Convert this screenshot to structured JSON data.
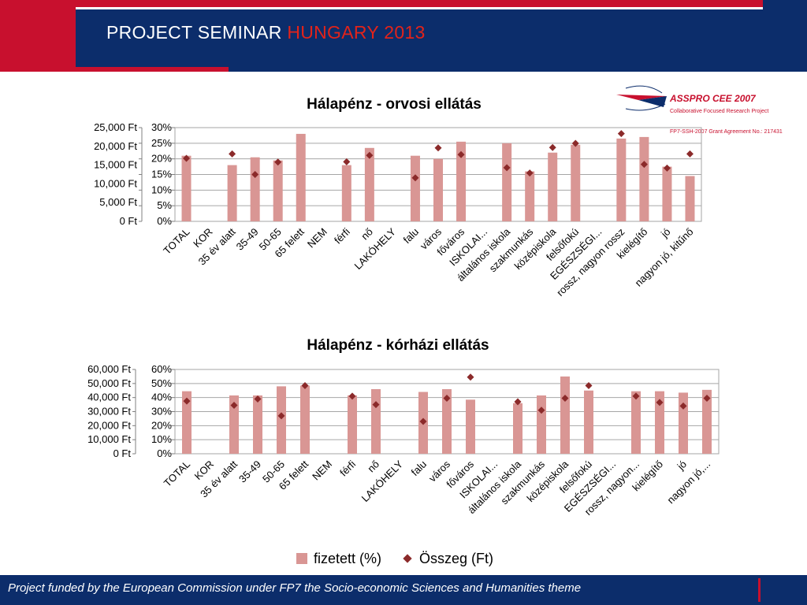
{
  "header": {
    "title_main": "PROJECT SEMINAR",
    "title_highlight": "HUNGARY 2013"
  },
  "logo": {
    "name": "ASSPRO CEE 2007",
    "subtitle": "Collaborative Focused Research Project",
    "grant": "FP7-SSH-2007 Grant Agreement No.: 217431"
  },
  "colors": {
    "navy": "#0c2d6b",
    "red": "#c8102e",
    "bar": "#d99694",
    "marker": "#8b2a2a"
  },
  "legend": {
    "bar_label": "fizetett (%)",
    "marker_label": "Összeg (Ft)"
  },
  "footer": {
    "text": "Project funded by the European Commission under FP7 the Socio-economic Sciences and Humanities theme"
  },
  "chart_data": [
    {
      "type": "bar",
      "title": "Hálapénz - orvosi ellátás",
      "categories": [
        "TOTAL",
        "KOR",
        "35 év alatt",
        "35-49",
        "50-65",
        "65 felett",
        "NEM",
        "férfi",
        "nő",
        "LAKÓHELY",
        "falu",
        "város",
        "főváros",
        "ISKOLAI...",
        "általános iskola",
        "szakmunkás",
        "középiskola",
        "felsőfokú",
        "EGÉSZSÉGI...",
        "rossz, nagyon rossz",
        "kielégítő",
        "jó",
        "nagyon jó, kitűnő"
      ],
      "series": [
        {
          "name": "fizetett (%)",
          "axis": "right",
          "values": [
            21,
            null,
            18,
            20.5,
            19.5,
            28,
            null,
            18,
            23.5,
            null,
            21,
            20,
            25.5,
            null,
            25,
            16,
            22,
            24.5,
            null,
            26.5,
            27,
            17.5,
            14.5
          ]
        },
        {
          "name": "Összeg (Ft)",
          "axis": "left",
          "values": [
            16800,
            null,
            18000,
            12500,
            15800,
            null,
            null,
            15900,
            17600,
            null,
            11600,
            19600,
            17800,
            null,
            14300,
            12900,
            19700,
            20800,
            null,
            23400,
            15200,
            14200,
            18000
          ]
        }
      ],
      "left_axis": {
        "ylim": [
          0,
          25000
        ],
        "ticks": [
          "0 Ft",
          "5,000 Ft",
          "10,000 Ft",
          "15,000 Ft",
          "20,000 Ft",
          "25,000 Ft"
        ]
      },
      "right_axis": {
        "ylim": [
          0,
          30
        ],
        "ticks": [
          "0%",
          "5%",
          "10%",
          "15%",
          "20%",
          "25%",
          "30%"
        ]
      },
      "grid": true
    },
    {
      "type": "bar",
      "title": "Hálapénz - kórházi ellátás",
      "categories": [
        "TOTAL",
        "KOR",
        "35 év alatt",
        "35-49",
        "50-65",
        "65 felett",
        "NEM",
        "férfi",
        "nő",
        "LAKÓHELY",
        "falu",
        "város",
        "főváros",
        "ISKOLAI...",
        "általános iskola",
        "szakmunkás",
        "középiskola",
        "felsőfokú",
        "EGÉSZSÉGI...",
        "rossz, nagyon...",
        "kielégítő",
        "jó",
        "nagyon jó,..."
      ],
      "series": [
        {
          "name": "fizetett (%)",
          "axis": "right",
          "values": [
            44.5,
            null,
            41.5,
            41.5,
            48,
            48.5,
            null,
            41.5,
            46,
            null,
            44,
            46,
            38.5,
            null,
            36,
            41.5,
            55,
            45,
            null,
            44.5,
            44.5,
            43.5,
            45.5
          ]
        },
        {
          "name": "Összeg (Ft)",
          "axis": "left",
          "values": [
            37500,
            null,
            34500,
            39000,
            27000,
            48500,
            null,
            41000,
            35000,
            null,
            23000,
            39500,
            54500,
            null,
            37000,
            31000,
            39500,
            48500,
            null,
            41000,
            36500,
            34000,
            39500
          ]
        }
      ],
      "left_axis": {
        "ylim": [
          0,
          60000
        ],
        "ticks": [
          "0 Ft",
          "10,000 Ft",
          "20,000 Ft",
          "30,000 Ft",
          "40,000 Ft",
          "50,000 Ft",
          "60,000 Ft"
        ]
      },
      "right_axis": {
        "ylim": [
          0,
          60
        ],
        "ticks": [
          "0%",
          "10%",
          "20%",
          "30%",
          "40%",
          "50%",
          "60%"
        ]
      },
      "grid": true
    }
  ]
}
